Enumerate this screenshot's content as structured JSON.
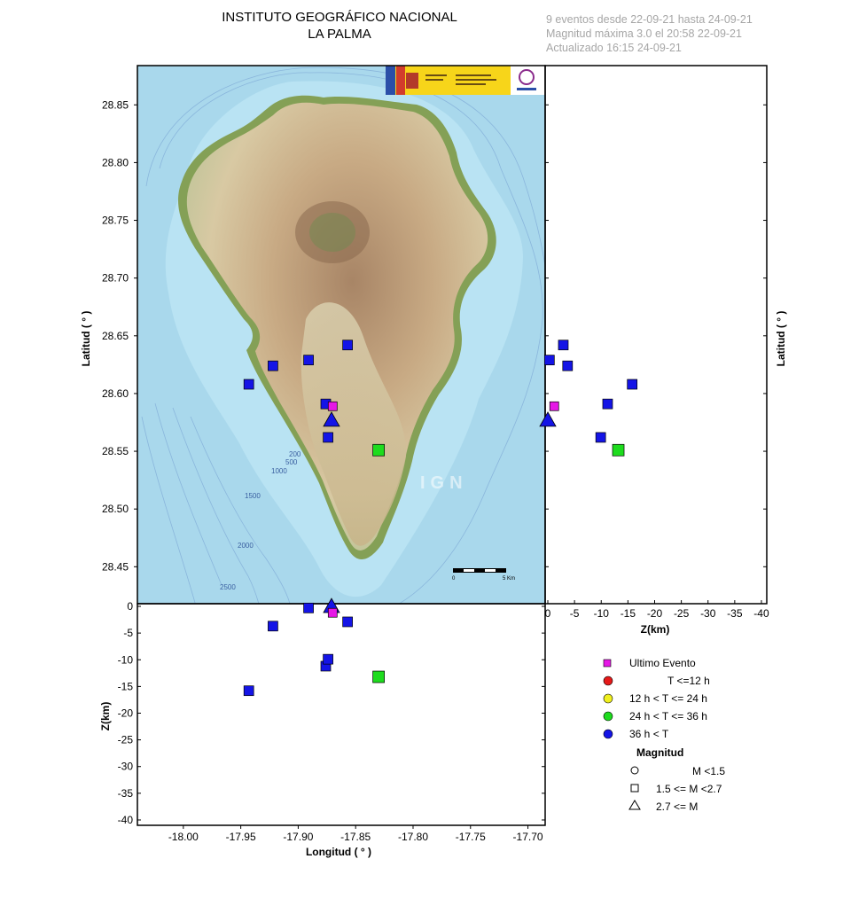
{
  "header": {
    "title_line1": "INSTITUTO GEOGRÁFICO NACIONAL",
    "title_line2": "LA PALMA",
    "info_line1": "9 eventos desde 22-09-21 hasta 24-09-21",
    "info_line2": "Magnitud máxima 3.0 el 20:58 22-09-21",
    "info_line3": "Actualizado   16:15  24-09-21"
  },
  "axes": {
    "lat_label": "Latitud ( ° )",
    "lon_label": "Longitud ( ° )",
    "z_label": "Z(km)",
    "lat_ticks": [
      "28.85",
      "28.80",
      "28.75",
      "28.70",
      "28.65",
      "28.60",
      "28.55",
      "28.50",
      "28.45"
    ],
    "lon_ticks": [
      "-18.00",
      "-17.95",
      "-17.90",
      "-17.85",
      "-17.80",
      "-17.75",
      "-17.70"
    ],
    "z_ticks_h": [
      "0",
      "-5",
      "-10",
      "-15",
      "-20",
      "-25",
      "-30",
      "-35",
      "-40"
    ],
    "z_ticks_v": [
      "0",
      "-5",
      "-10",
      "-15",
      "-20",
      "-25",
      "-30",
      "-35",
      "-40"
    ]
  },
  "map": {
    "watermark": "IGN",
    "scale_start": "0",
    "scale_end": "5 Km",
    "contours": [
      "200",
      "500",
      "1000",
      "1500",
      "2000",
      "2500"
    ]
  },
  "legend": {
    "ultimo": "Ultimo Evento",
    "t1": "T <=12 h",
    "t2": "12 h  < T <= 24 h",
    "t3": "24 h  < T <= 36 h",
    "t4": "36 h <  T",
    "mag_title": "Magnitud",
    "m1": "M <1.5",
    "m2": "1.5 <= M <2.7",
    "m3": "2.7 <= M",
    "colors": {
      "last": "#e617e6",
      "t1": "#e61919",
      "t2": "#f0f01e",
      "t3": "#1edc1e",
      "t4": "#1414e6"
    }
  },
  "chart_data": {
    "type": "scatter",
    "xlim": [
      -18.04,
      -17.685
    ],
    "ylim": [
      28.418,
      28.884
    ],
    "zlim": [
      0.5,
      -41
    ],
    "events": [
      {
        "lon": -17.857,
        "lat": 28.642,
        "z": -2.9,
        "shape": "square",
        "color": "t4"
      },
      {
        "lon": -17.922,
        "lat": 28.624,
        "z": -3.7,
        "shape": "square",
        "color": "t4"
      },
      {
        "lon": -17.891,
        "lat": 28.629,
        "z": -0.3,
        "shape": "square",
        "color": "t4"
      },
      {
        "lon": -17.943,
        "lat": 28.608,
        "z": -15.8,
        "shape": "square",
        "color": "t4"
      },
      {
        "lon": -17.876,
        "lat": 28.591,
        "z": -11.2,
        "shape": "square",
        "color": "t4"
      },
      {
        "lon": -17.874,
        "lat": 28.562,
        "z": -9.9,
        "shape": "square",
        "color": "t4"
      },
      {
        "lon": -17.871,
        "lat": 28.577,
        "z": 0.0,
        "shape": "triangle",
        "color": "t4"
      },
      {
        "lon": -17.83,
        "lat": 28.551,
        "z": -13.2,
        "shape": "square",
        "color": "t3"
      },
      {
        "lon": -17.87,
        "lat": 28.589,
        "z": -1.2,
        "shape": "square",
        "color": "last"
      }
    ]
  }
}
